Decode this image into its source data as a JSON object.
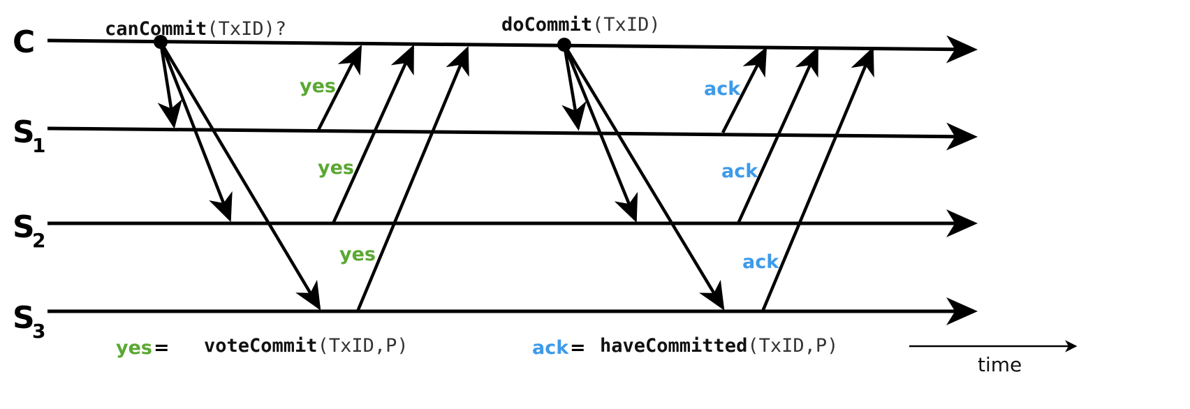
{
  "processes": [
    {
      "id": "C",
      "label": "C",
      "subscript": ""
    },
    {
      "id": "S1",
      "label": "S",
      "subscript": "1"
    },
    {
      "id": "S2",
      "label": "S",
      "subscript": "2"
    },
    {
      "id": "S3",
      "label": "S",
      "subscript": "3"
    }
  ],
  "phase1": {
    "call_name": "canCommit",
    "call_args": "(TxID)?",
    "reply_label": "yes"
  },
  "phase2": {
    "call_name": "doCommit",
    "call_args": "(TxID)",
    "reply_label": "ack"
  },
  "legend": {
    "yes": {
      "label": "yes",
      "eq": "=",
      "func": "voteCommit",
      "args": "(TxID,P)"
    },
    "ack": {
      "label": "ack",
      "eq": "=",
      "func": "haveCommitted",
      "args": "(TxID,P)"
    }
  },
  "time_label": "time",
  "colors": {
    "yes": "#5aa832",
    "ack": "#3d9be9",
    "line": "#000000"
  }
}
